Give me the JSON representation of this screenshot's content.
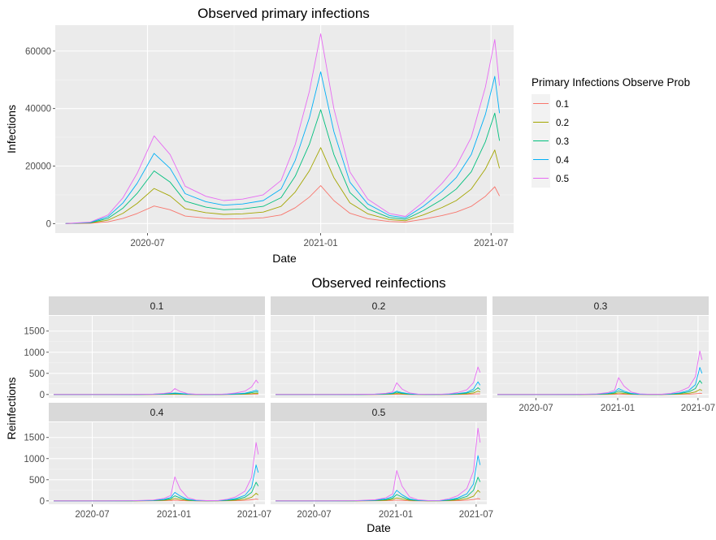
{
  "chart_data": [
    {
      "type": "line",
      "title": "Observed primary infections",
      "xlabel": "Date",
      "ylabel": "Infections",
      "xlim": [
        "2020-03-25",
        "2021-07-25"
      ],
      "ylim": [
        -3300,
        69000
      ],
      "x_ticks": [
        "2020-07-01",
        "2021-01-01",
        "2021-07-01"
      ],
      "x_tick_labels": [
        "2020-07",
        "2021-01",
        "2021-07"
      ],
      "y_ticks": [
        0,
        20000,
        40000,
        60000
      ],
      "y_tick_labels": [
        "0",
        "20000",
        "40000",
        "60000"
      ],
      "grid": true,
      "legend": {
        "title": "Primary Infections Observe Prob",
        "position": "right"
      },
      "x": [
        "2020-04-05",
        "2020-05-01",
        "2020-05-20",
        "2020-06-05",
        "2020-06-20",
        "2020-07-08",
        "2020-07-25",
        "2020-08-10",
        "2020-09-01",
        "2020-09-20",
        "2020-10-10",
        "2020-11-01",
        "2020-11-20",
        "2020-12-05",
        "2020-12-20",
        "2021-01-01",
        "2021-01-15",
        "2021-02-01",
        "2021-02-20",
        "2021-03-15",
        "2021-04-01",
        "2021-04-20",
        "2021-05-10",
        "2021-05-25",
        "2021-06-10",
        "2021-06-25",
        "2021-07-05",
        "2021-07-10"
      ],
      "series": [
        {
          "name": "0.1",
          "color": "#F8766D",
          "values": [
            0,
            100,
            600,
            1800,
            3500,
            6100,
            4800,
            2600,
            1900,
            1600,
            1700,
            2000,
            3000,
            5500,
            9200,
            13200,
            8000,
            3600,
            1700,
            700,
            500,
            1500,
            2800,
            4000,
            6000,
            9500,
            12800,
            9600
          ]
        },
        {
          "name": "0.2",
          "color": "#A3A500",
          "values": [
            0,
            200,
            1200,
            3600,
            7000,
            12200,
            9600,
            5200,
            3800,
            3200,
            3400,
            4000,
            6000,
            11000,
            18400,
            26400,
            16000,
            7200,
            3400,
            1400,
            1000,
            3000,
            5600,
            8000,
            12000,
            19000,
            25600,
            19200
          ]
        },
        {
          "name": "0.3",
          "color": "#00BF7D",
          "values": [
            0,
            300,
            1800,
            5400,
            10500,
            18300,
            14400,
            7800,
            5700,
            4800,
            5100,
            6000,
            9000,
            16500,
            27600,
            39600,
            24000,
            10800,
            5100,
            2100,
            1500,
            4500,
            8400,
            12000,
            18000,
            28500,
            38400,
            28800
          ]
        },
        {
          "name": "0.4",
          "color": "#00B0F6",
          "values": [
            0,
            400,
            2400,
            7200,
            14000,
            24400,
            19200,
            10400,
            7600,
            6400,
            6800,
            8000,
            12000,
            22000,
            36800,
            52800,
            32000,
            14400,
            6800,
            2800,
            2000,
            6000,
            11200,
            16000,
            24000,
            38000,
            51200,
            38400
          ]
        },
        {
          "name": "0.5",
          "color": "#E76BF3",
          "values": [
            0,
            500,
            3000,
            9000,
            17500,
            30500,
            24000,
            13000,
            9500,
            8000,
            8500,
            10000,
            15000,
            27500,
            46000,
            66000,
            40000,
            18000,
            8500,
            3500,
            2500,
            7500,
            14000,
            20000,
            30000,
            47500,
            64000,
            48000
          ]
        }
      ]
    },
    {
      "type": "line",
      "title": "Observed reinfections",
      "xlabel": "Date",
      "ylabel": "Reinfections",
      "xlim": [
        "2020-03-25",
        "2021-07-25"
      ],
      "ylim": [
        -80,
        1860
      ],
      "x_ticks": [
        "2020-07-01",
        "2021-01-01",
        "2021-07-01"
      ],
      "x_tick_labels": [
        "2020-07",
        "2021-01",
        "2021-07"
      ],
      "y_ticks": [
        0,
        500,
        1000,
        1500
      ],
      "y_tick_labels": [
        "0",
        "500",
        "1000",
        "1500"
      ],
      "grid": true,
      "x": [
        "2020-04-05",
        "2020-08-01",
        "2020-10-01",
        "2020-11-15",
        "2020-12-10",
        "2020-12-25",
        "2021-01-03",
        "2021-01-15",
        "2021-02-01",
        "2021-02-20",
        "2021-03-15",
        "2021-04-10",
        "2021-05-01",
        "2021-05-20",
        "2021-06-10",
        "2021-06-25",
        "2021-07-05",
        "2021-07-10"
      ],
      "series_names": [
        "0.1",
        "0.2",
        "0.3",
        "0.4",
        "0.5"
      ],
      "series_colors": [
        "#F8766D",
        "#A3A500",
        "#00BF7D",
        "#00B0F6",
        "#E76BF3"
      ],
      "panels": [
        {
          "label": "0.1",
          "values": [
            [
              0,
              0,
              0,
              1,
              2,
              3,
              5,
              3,
              1,
              0,
              0,
              0,
              1,
              2,
              4,
              8,
              12,
              10
            ],
            [
              0,
              0,
              0,
              2,
              5,
              9,
              12,
              8,
              3,
              1,
              0,
              0,
              2,
              5,
              10,
              20,
              30,
              25
            ],
            [
              0,
              0,
              1,
              4,
              10,
              17,
              22,
              15,
              6,
              2,
              1,
              1,
              4,
              10,
              20,
              42,
              62,
              50
            ],
            [
              0,
              0,
              1,
              6,
              16,
              28,
              38,
              26,
              10,
              3,
              1,
              2,
              7,
              16,
              32,
              68,
              100,
              80
            ],
            [
              0,
              0,
              2,
              10,
              28,
              48,
              140,
              72,
              20,
              6,
              2,
              3,
              15,
              35,
              80,
              180,
              340,
              270
            ]
          ]
        },
        {
          "label": "0.2",
          "values": [
            [
              0,
              0,
              0,
              1,
              2,
              4,
              6,
              4,
              1,
              0,
              0,
              0,
              1,
              3,
              6,
              12,
              18,
              14
            ],
            [
              0,
              0,
              1,
              3,
              7,
              12,
              24,
              14,
              5,
              2,
              1,
              1,
              3,
              8,
              18,
              38,
              80,
              60
            ],
            [
              0,
              0,
              1,
              5,
              12,
              22,
              55,
              30,
              10,
              3,
              1,
              2,
              6,
              15,
              35,
              80,
              160,
              120
            ],
            [
              0,
              0,
              1,
              7,
              18,
              34,
              80,
              45,
              15,
              5,
              2,
              2,
              9,
              22,
              50,
              130,
              300,
              220
            ],
            [
              0,
              0,
              2,
              10,
              30,
              60,
              280,
              130,
              35,
              10,
              3,
              4,
              18,
              45,
              110,
              280,
              650,
              520
            ]
          ]
        },
        {
          "label": "0.3",
          "values": [
            [
              0,
              0,
              0,
              1,
              3,
              6,
              10,
              6,
              2,
              1,
              0,
              0,
              2,
              4,
              9,
              18,
              30,
              24
            ],
            [
              0,
              0,
              1,
              4,
              10,
              20,
              40,
              24,
              8,
              2,
              1,
              1,
              5,
              12,
              28,
              60,
              120,
              95
            ],
            [
              0,
              0,
              1,
              7,
              18,
              38,
              85,
              50,
              16,
              5,
              2,
              2,
              10,
              25,
              60,
              140,
              330,
              260
            ],
            [
              0,
              0,
              2,
              10,
              28,
              60,
              140,
              80,
              25,
              7,
              2,
              3,
              15,
              38,
              95,
              230,
              640,
              500
            ],
            [
              0,
              0,
              3,
              15,
              45,
              100,
              400,
              200,
              55,
              15,
              5,
              6,
              28,
              70,
              170,
              420,
              1030,
              820
            ]
          ]
        },
        {
          "label": "0.4",
          "values": [
            [
              0,
              0,
              0,
              2,
              4,
              8,
              14,
              8,
              3,
              1,
              0,
              0,
              2,
              6,
              12,
              25,
              42,
              34
            ],
            [
              0,
              0,
              1,
              5,
              14,
              28,
              56,
              34,
              11,
              3,
              1,
              2,
              7,
              18,
              40,
              85,
              180,
              140
            ],
            [
              0,
              0,
              2,
              9,
              25,
              52,
              120,
              70,
              22,
              7,
              2,
              3,
              14,
              35,
              85,
              200,
              440,
              350
            ],
            [
              0,
              0,
              2,
              13,
              38,
              80,
              200,
              115,
              35,
              10,
              3,
              4,
              22,
              55,
              130,
              320,
              850,
              670
            ],
            [
              0,
              0,
              4,
              20,
              60,
              130,
              570,
              280,
              75,
              20,
              6,
              8,
              40,
              95,
              230,
              560,
              1380,
              1100
            ]
          ]
        },
        {
          "label": "0.5",
          "values": [
            [
              0,
              0,
              0,
              2,
              5,
              10,
              18,
              10,
              3,
              1,
              0,
              0,
              3,
              7,
              15,
              32,
              55,
              44
            ],
            [
              0,
              0,
              1,
              6,
              17,
              35,
              70,
              42,
              14,
              4,
              1,
              2,
              9,
              22,
              50,
              110,
              250,
              200
            ],
            [
              0,
              0,
              2,
              11,
              30,
              65,
              150,
              90,
              28,
              8,
              2,
              3,
              18,
              45,
              105,
              250,
              560,
              450
            ],
            [
              0,
              0,
              3,
              16,
              48,
              100,
              250,
              145,
              44,
              12,
              4,
              5,
              28,
              68,
              165,
              400,
              1070,
              850
            ],
            [
              0,
              0,
              5,
              25,
              75,
              165,
              720,
              350,
              95,
              25,
              8,
              10,
              50,
              120,
              290,
              700,
              1720,
              1380
            ]
          ]
        }
      ]
    }
  ]
}
